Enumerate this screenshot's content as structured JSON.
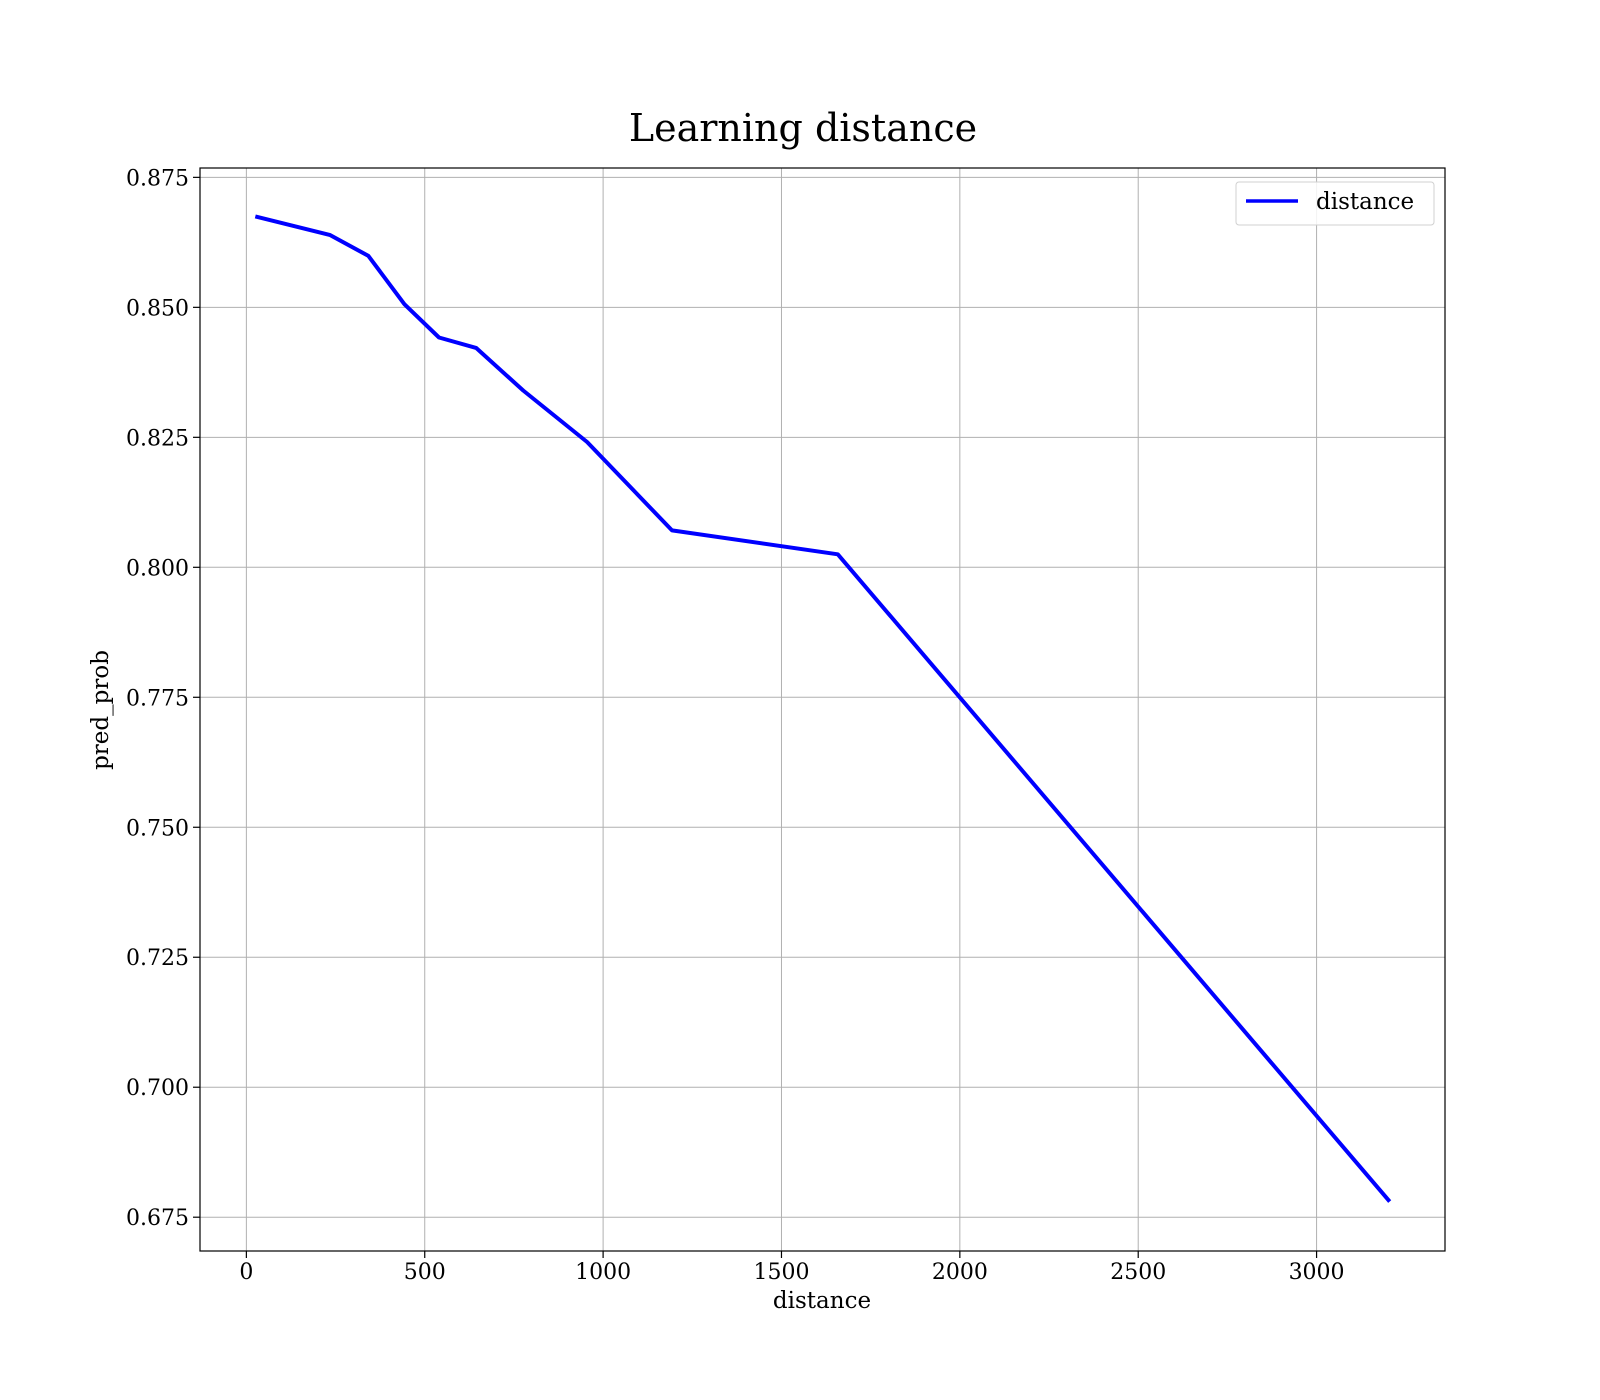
{
  "chart_data": {
    "type": "line",
    "title": "Learning distance",
    "xlabel": "distance",
    "ylabel": "pred_prob",
    "xlim": [
      -130,
      3360
    ],
    "ylim": [
      0.6685,
      0.8768
    ],
    "xticks": [
      0,
      500,
      1000,
      1500,
      2000,
      2500,
      3000
    ],
    "xtick_labels": [
      "0",
      "500",
      "1000",
      "1500",
      "2000",
      "2500",
      "3000"
    ],
    "yticks": [
      0.675,
      0.7,
      0.725,
      0.75,
      0.775,
      0.8,
      0.825,
      0.85,
      0.875
    ],
    "ytick_labels": [
      "0.675",
      "0.700",
      "0.725",
      "0.750",
      "0.775",
      "0.800",
      "0.825",
      "0.850",
      "0.875"
    ],
    "grid": true,
    "legend_position": "top-right",
    "series": [
      {
        "name": "distance",
        "color": "#0000ff",
        "x": [
          25,
          235,
          342,
          443,
          540,
          644,
          776,
          955,
          1193,
          1658,
          3205
        ],
        "y": [
          0.8675,
          0.8639,
          0.8599,
          0.8506,
          0.8442,
          0.8422,
          0.834,
          0.8241,
          0.8071,
          0.8025,
          0.678
        ]
      }
    ]
  }
}
